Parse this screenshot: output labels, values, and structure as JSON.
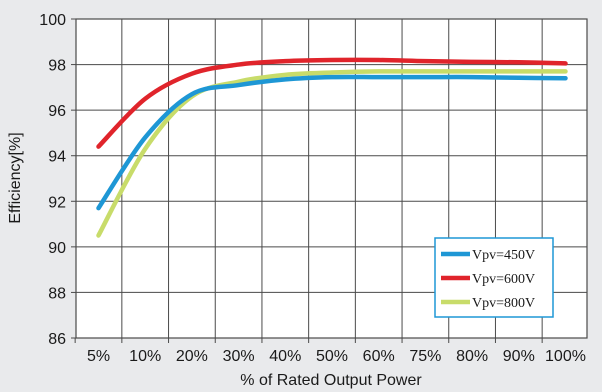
{
  "chart_data": {
    "type": "line",
    "xlabel": "% of Rated Output Power",
    "ylabel": "Efficiency[%]",
    "categories": [
      "5%",
      "10%",
      "20%",
      "30%",
      "40%",
      "50%",
      "60%",
      "75%",
      "80%",
      "90%",
      "100%"
    ],
    "ylim": [
      86,
      100
    ],
    "yticks": [
      "86",
      "88",
      "90",
      "92",
      "94",
      "96",
      "98",
      "100"
    ],
    "grid": true,
    "legend_position": "bottom-right",
    "series": [
      {
        "name": "Vpv=450V",
        "color": "#1e97d5",
        "values": [
          91.7,
          94.8,
          96.7,
          97.1,
          97.35,
          97.45,
          97.45,
          97.45,
          97.45,
          97.42,
          97.4
        ]
      },
      {
        "name": "Vpv=600V",
        "color": "#e0242b",
        "values": [
          94.4,
          96.5,
          97.6,
          98.0,
          98.15,
          98.2,
          98.2,
          98.15,
          98.12,
          98.1,
          98.05
        ]
      },
      {
        "name": "Vpv=800V",
        "color": "#c8dc6a",
        "values": [
          90.5,
          94.3,
          96.6,
          97.25,
          97.55,
          97.65,
          97.7,
          97.7,
          97.7,
          97.7,
          97.7
        ]
      }
    ]
  }
}
